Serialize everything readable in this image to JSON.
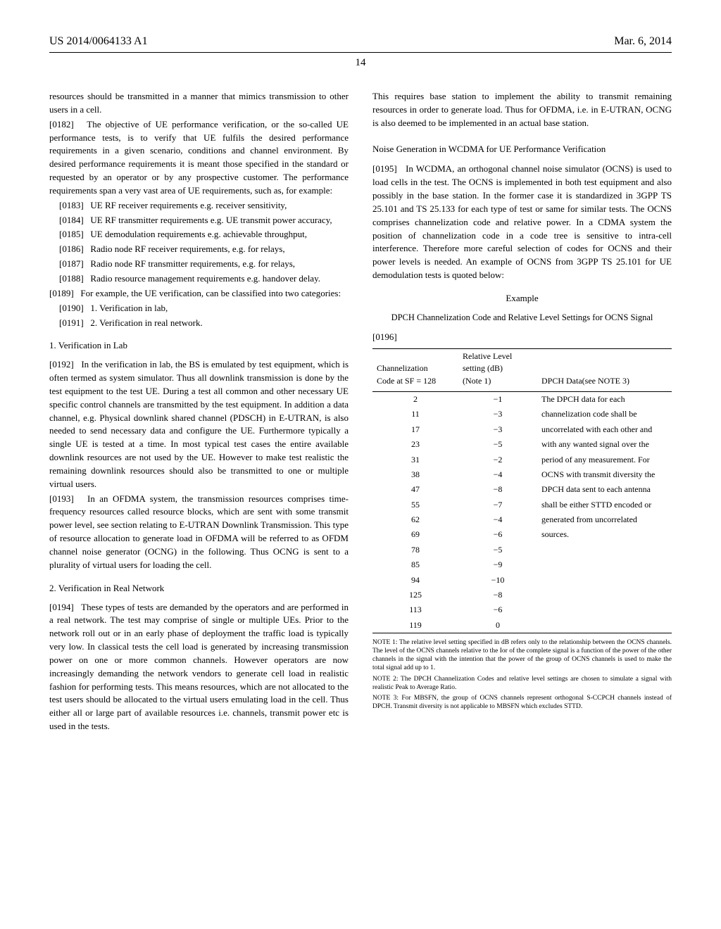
{
  "header": {
    "left": "US 2014/0064133 A1",
    "right": "Mar. 6, 2014"
  },
  "page_number": "14",
  "col1": {
    "intro": "resources should be transmitted in a manner that mimics transmission to other users in a cell.",
    "p0182_num": "[0182]",
    "p0182": "The objective of UE performance verification, or the so-called UE performance tests, is to verify that UE fulfils the desired performance requirements in a given scenario, conditions and channel environment. By desired performance requirements it is meant those specified in the standard or requested by an operator or by any prospective customer. The performance requirements span a very vast area of UE requirements, such as, for example:",
    "b0183_num": "[0183]",
    "b0183": "UE RF receiver requirements e.g. receiver sensitivity,",
    "b0184_num": "[0184]",
    "b0184": "UE RF transmitter requirements e.g. UE transmit power accuracy,",
    "b0185_num": "[0185]",
    "b0185": "UE demodulation requirements e.g. achievable throughput,",
    "b0186_num": "[0186]",
    "b0186": "Radio node RF receiver requirements, e.g. for relays,",
    "b0187_num": "[0187]",
    "b0187": "Radio node RF transmitter requirements, e.g. for relays,",
    "b0188_num": "[0188]",
    "b0188": "Radio resource management requirements e.g. handover delay.",
    "p0189_num": "[0189]",
    "p0189": "For example, the UE verification, can be classified into two categories:",
    "b0190_num": "[0190]",
    "b0190": "1. Verification in lab,",
    "b0191_num": "[0191]",
    "b0191": "2. Verification in real network.",
    "sub1": "1. Verification in Lab",
    "p0192_num": "[0192]",
    "p0192": "In the verification in lab, the BS is emulated by test equipment, which is often termed as system simulator. Thus all downlink transmission is done by the test equipment to the test UE. During a test all common and other necessary UE specific control channels are transmitted by the test equipment. In addition a data channel, e.g. Physical downlink shared channel (PDSCH) in E-UTRAN, is also needed to send necessary data and configure the UE. Furthermore typically a single UE is tested at a time. In most typical test cases the entire available downlink resources are not used by the UE. However to make test realistic the remaining downlink resources should also be transmitted to one or multiple virtual users.",
    "p0193_num": "[0193]",
    "p0193": "In an OFDMA system, the transmission resources comprises time-frequency resources called resource blocks, which are sent with some transmit power level, see section relating to E-UTRAN Downlink Transmission. This type of resource allocation to generate load in OFDMA will be referred to as OFDM channel noise generator (OCNG) in the following. Thus OCNG is sent to a plurality of virtual users for loading the cell.",
    "sub2": "2. Verification in Real Network",
    "p0194_num": "[0194]",
    "p0194": "These types of tests are demanded by the operators and are performed in a real network. The test may comprise of single or multiple UEs. Prior to the network roll out or in an early phase of deployment the traffic load is typically very low. In classical tests the cell load is generated by increasing transmission power on one or more common channels. However operators are now increasingly demanding the network vendors to generate cell load in realistic fashion for performing tests. This means resources, which are not allocated to the test users should be allocated to the virtual users emulating load in the cell. Thus either all or large part of available resources i.e. channels, transmit power etc is used in the tests."
  },
  "col2": {
    "cont": "This requires base station to implement the ability to transmit remaining resources in order to generate load. Thus for OFDMA, i.e. in E-UTRAN, OCNG is also deemed to be implemented in an actual base station.",
    "section": "Noise Generation in WCDMA for UE Performance Verification",
    "p0195_num": "[0195]",
    "p0195": "In WCDMA, an orthogonal channel noise simulator (OCNS) is used to load cells in the test. The OCNS is implemented in both test equipment and also possibly in the base station. In the former case it is standardized in 3GPP TS 25.101 and TS 25.133 for each type of test or same for similar tests. The OCNS comprises channelization code and relative power. In a CDMA system the position of channelization code in a code tree is sensitive to intra-cell interference. Therefore more careful selection of codes for OCNS and their power levels is needed. An example of OCNS from 3GPP TS 25.101 for UE demodulation tests is quoted below:",
    "example": "Example",
    "example_sub": "DPCH Channelization Code and Relative Level Settings for OCNS Signal",
    "p0196_num": "[0196]"
  },
  "table": {
    "h1a": "Channelization",
    "h1b": "Code at SF = 128",
    "h2a": "Relative Level",
    "h2b": "setting (dB)",
    "h2c": "(Note 1)",
    "h3": "DPCH Data(see NOTE 3)",
    "rows": [
      {
        "c": "2",
        "r": "−1"
      },
      {
        "c": "11",
        "r": "−3"
      },
      {
        "c": "17",
        "r": "−3"
      },
      {
        "c": "23",
        "r": "−5"
      },
      {
        "c": "31",
        "r": "−2"
      },
      {
        "c": "38",
        "r": "−4"
      },
      {
        "c": "47",
        "r": "−8"
      },
      {
        "c": "55",
        "r": "−7"
      },
      {
        "c": "62",
        "r": "−4"
      },
      {
        "c": "69",
        "r": "−6"
      },
      {
        "c": "78",
        "r": "−5"
      },
      {
        "c": "85",
        "r": "−9"
      },
      {
        "c": "94",
        "r": "−10"
      },
      {
        "c": "125",
        "r": "−8"
      },
      {
        "c": "113",
        "r": "−6"
      },
      {
        "c": "119",
        "r": "0"
      }
    ],
    "dpch_lines": [
      "The DPCH data for each",
      "channelization code shall be",
      "uncorrelated with each other and",
      "with any wanted signal over the",
      "period of any measurement. For",
      "OCNS with transmit diversity the",
      "DPCH data sent to each antenna",
      "shall be either STTD encoded or",
      "generated from uncorrelated",
      "sources."
    ]
  },
  "notes": {
    "n1": "NOTE 1: The relative level setting specified in dB refers only to the relationship between the OCNS channels. The level of the OCNS channels relative to the Ior of the complete signal is a function of the power of the other channels in the signal with the intention that the power of the group of OCNS channels is used to make the total signal add up to 1.",
    "n2": "NOTE 2: The DPCH Channelization Codes and relative level settings are chosen to simulate a signal with realistic Peak to Average Ratio.",
    "n3": "NOTE 3: For MBSFN, the group of OCNS channels represent orthogonal S-CCPCH channels instead of DPCH. Transmit diversity is not applicable to MBSFN which excludes STTD."
  }
}
